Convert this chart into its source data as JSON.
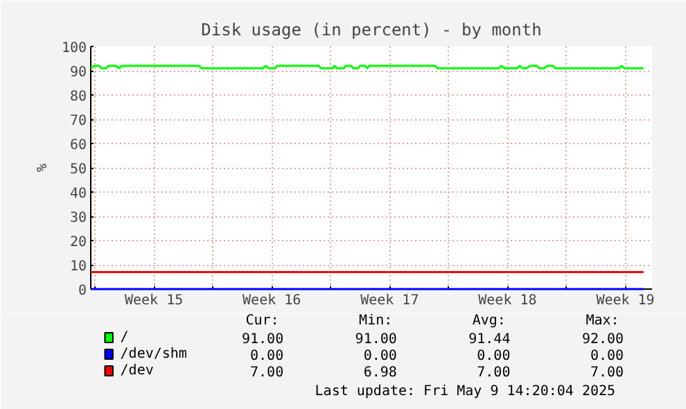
{
  "chart_data": {
    "type": "line",
    "title": "Disk usage (in percent) - by month",
    "ylabel": "%",
    "xlim": [
      "2025-04-06T18:00",
      "2025-05-10T02:00"
    ],
    "ylim": [
      0,
      100
    ],
    "xticks": [
      {
        "value": "2025-04-07",
        "label": null
      },
      {
        "value": "2025-04-10T12:00",
        "label": "Week 15"
      },
      {
        "value": "2025-04-14",
        "label": null
      },
      {
        "value": "2025-04-17T12:00",
        "label": "Week 16"
      },
      {
        "value": "2025-04-21",
        "label": null
      },
      {
        "value": "2025-04-24T12:00",
        "label": "Week 17"
      },
      {
        "value": "2025-04-28",
        "label": null
      },
      {
        "value": "2025-05-01T12:00",
        "label": "Week 18"
      },
      {
        "value": "2025-05-05",
        "label": null
      },
      {
        "value": "2025-05-08T12:00",
        "label": "Week 19"
      }
    ],
    "yticks": [
      0,
      10,
      20,
      30,
      40,
      50,
      60,
      70,
      80,
      90,
      100
    ],
    "grid": true,
    "legend": "bottom",
    "series": [
      {
        "name": "/",
        "color": "#00ff00",
        "x": [
          "2025-04-06T18:00",
          "2025-04-06T23:00",
          "2025-04-07T06:00",
          "2025-04-07T09:00",
          "2025-04-07T16:00",
          "2025-04-07T19:00",
          "2025-04-08T06:00",
          "2025-04-08T10:00",
          "2025-04-08T14:00",
          "2025-04-13T04:00",
          "2025-04-13T08:00",
          "2025-04-17T00:00",
          "2025-04-17T03:00",
          "2025-04-17T08:00",
          "2025-04-17T16:00",
          "2025-04-17T20:00",
          "2025-04-20T07:00",
          "2025-04-20T10:00",
          "2025-04-21T03:00",
          "2025-04-21T05:00",
          "2025-04-21T09:00",
          "2025-04-21T19:00",
          "2025-04-21T21:00",
          "2025-04-22T05:00",
          "2025-04-22T08:00",
          "2025-04-22T15:00",
          "2025-04-22T18:00",
          "2025-04-23T01:00",
          "2025-04-23T04:00",
          "2025-04-23T07:00",
          "2025-04-27T05:00",
          "2025-04-27T08:00",
          "2025-05-01T00:00",
          "2025-05-01T03:00",
          "2025-05-01T08:00",
          "2025-05-02T02:00",
          "2025-05-02T05:00",
          "2025-05-02T10:00",
          "2025-05-02T15:00",
          "2025-05-02T20:00",
          "2025-05-03T06:00",
          "2025-05-03T09:00",
          "2025-05-03T16:00",
          "2025-05-03T21:00",
          "2025-05-04T05:00",
          "2025-05-04T08:00",
          "2025-05-08T03:00",
          "2025-05-08T06:00",
          "2025-05-08T11:00",
          "2025-05-09T14:00"
        ],
        "values": [
          91,
          92,
          92,
          91,
          91,
          92,
          92,
          91,
          92,
          92,
          91,
          91,
          92,
          91,
          91,
          92,
          92,
          91,
          91,
          92,
          91,
          91,
          92,
          92,
          91,
          91,
          92,
          92,
          91,
          92,
          92,
          91,
          91,
          92,
          91,
          91,
          92,
          91,
          91,
          92,
          92,
          91,
          91,
          92,
          92,
          91,
          91,
          92,
          91,
          91
        ]
      },
      {
        "name": "/dev/shm",
        "color": "#0000ff",
        "x": [
          "2025-04-06T18:00",
          "2025-05-09T14:00"
        ],
        "values": [
          0,
          0
        ]
      },
      {
        "name": "/dev",
        "color": "#ff0000",
        "x": [
          "2025-04-06T18:00",
          "2025-05-09T14:00"
        ],
        "values": [
          7,
          7
        ]
      }
    ],
    "annotations": [
      "Cur:",
      "Min:",
      "Avg:",
      "Max:",
      "91.00",
      "91.00",
      "91.44",
      "92.00",
      "0.00",
      "0.00",
      "0.00",
      "0.00",
      "7.00",
      "6.98",
      "7.00",
      "7.00",
      "Last update: Fri May  9 14:20:04 2025"
    ]
  }
}
